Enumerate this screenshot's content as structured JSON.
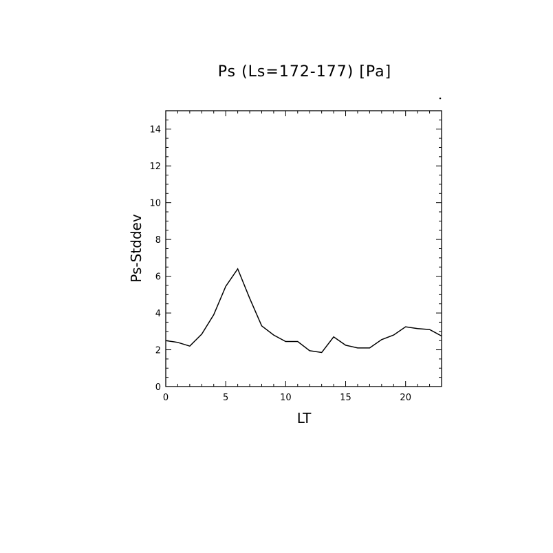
{
  "chart_data": {
    "type": "line",
    "title": "Ps (Ls=172-177) [Pa]",
    "xlabel": "LT",
    "ylabel": "Ps-Stddev",
    "xlim": [
      0,
      23
    ],
    "ylim": [
      0,
      15
    ],
    "xticks": [
      0,
      5,
      10,
      15,
      20
    ],
    "yticks": [
      0,
      2,
      4,
      6,
      8,
      10,
      12,
      14
    ],
    "grid": false,
    "series": [
      {
        "x": [
          0,
          1,
          2,
          3,
          4,
          5,
          6,
          7,
          8,
          9,
          10,
          11,
          12,
          13,
          14,
          15,
          16,
          17,
          18,
          19,
          20,
          21,
          22,
          23
        ],
        "values": [
          2.5,
          2.4,
          2.2,
          2.85,
          3.9,
          5.45,
          6.4,
          4.8,
          3.3,
          2.8,
          2.45,
          2.45,
          1.95,
          1.85,
          2.7,
          2.25,
          2.1,
          2.1,
          2.55,
          2.8,
          3.25,
          3.15,
          3.1,
          2.75
        ]
      }
    ]
  }
}
